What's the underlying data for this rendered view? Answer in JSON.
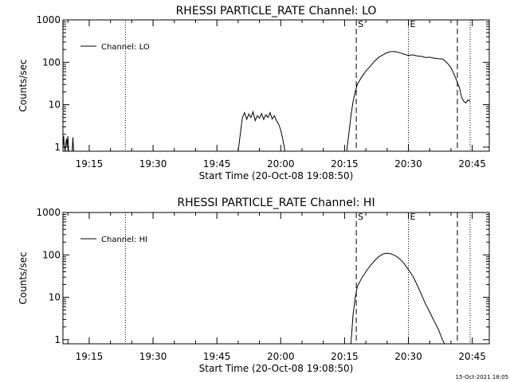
{
  "footer_timestamp": "15-Oct-2021 18:05",
  "chart_data": [
    {
      "type": "line",
      "title": "RHESSI PARTICLE_RATE Channel: LO",
      "xlabel": "Start Time (20-Oct-08 19:08:50)",
      "ylabel": "Counts/sec",
      "yscale": "log",
      "xlim": [
        "19:08:50",
        "20:49:00"
      ],
      "ylim": [
        0.8,
        1000
      ],
      "x_ticks": [
        "19:15",
        "19:30",
        "19:45",
        "20:00",
        "20:15",
        "20:30",
        "20:45"
      ],
      "y_ticks": [
        "1",
        "10",
        "100",
        "1000"
      ],
      "legend": {
        "position": "top-left",
        "entries": [
          "Channel: LO"
        ]
      },
      "markers": [
        {
          "time": "19:23:30",
          "style": "dotted",
          "label": ""
        },
        {
          "time": "20:17:45",
          "style": "dashed",
          "label": "S"
        },
        {
          "time": "20:30:00",
          "style": "dotted",
          "label": "E"
        },
        {
          "time": "20:41:30",
          "style": "dashed",
          "label": ""
        },
        {
          "time": "20:44:30",
          "style": "dotted",
          "label": ""
        }
      ],
      "series": [
        {
          "name": "Channel: LO",
          "segments": [
            {
              "x": [
                "19:08:50",
                "19:09:00",
                "19:09:10",
                "19:09:20",
                "19:09:30",
                "19:09:40",
                "19:09:50",
                "19:10:00",
                "19:10:10",
                "19:11:00",
                "19:11:10",
                "19:11:20"
              ],
              "y": [
                1.0,
                1.8,
                1.0,
                0.8,
                1.2,
                1.6,
                1.0,
                1.8,
                0.8,
                0.8,
                1.7,
                0.8
              ]
            },
            {
              "x": [
                "19:50:00",
                "19:50:30",
                "19:51:00",
                "19:51:30",
                "19:52:00",
                "19:52:30",
                "19:53:00",
                "19:53:30",
                "19:54:00",
                "19:54:30",
                "19:55:00",
                "19:55:30",
                "19:56:00",
                "19:56:30",
                "19:57:00",
                "19:57:30",
                "19:58:00",
                "19:58:30",
                "19:59:00",
                "19:59:30",
                "20:00:00",
                "20:00:30",
                "20:01:00"
              ],
              "y": [
                0.8,
                2.0,
                5.0,
                6.5,
                4.5,
                6.0,
                5.0,
                6.8,
                4.2,
                5.5,
                4.8,
                6.2,
                4.5,
                5.8,
                5.0,
                6.5,
                4.6,
                5.5,
                4.2,
                3.5,
                2.5,
                1.5,
                0.8
              ]
            },
            {
              "x": [
                "20:15:30",
                "20:16:00",
                "20:16:30",
                "20:17:00",
                "20:17:30",
                "20:18:00",
                "20:19:00",
                "20:20:00",
                "20:21:00",
                "20:22:00",
                "20:23:00",
                "20:24:00",
                "20:25:00",
                "20:26:00",
                "20:27:00",
                "20:28:00",
                "20:29:00",
                "20:30:00",
                "20:31:00",
                "20:32:00",
                "20:33:00",
                "20:34:00",
                "20:35:00",
                "20:36:00",
                "20:37:00",
                "20:38:00",
                "20:39:00",
                "20:40:00",
                "20:41:00",
                "20:42:00",
                "20:42:30",
                "20:43:00",
                "20:43:30",
                "20:44:00",
                "20:44:30"
              ],
              "y": [
                0.8,
                2.0,
                5.5,
                12,
                20,
                30,
                45,
                62,
                80,
                105,
                130,
                150,
                170,
                180,
                178,
                168,
                155,
                145,
                150,
                142,
                138,
                130,
                132,
                125,
                122,
                120,
                100,
                75,
                45,
                25,
                15,
                12,
                11,
                13,
                12
              ]
            }
          ]
        }
      ]
    },
    {
      "type": "line",
      "title": "RHESSI PARTICLE_RATE Channel: HI",
      "xlabel": "Start Time (20-Oct-08 19:08:50)",
      "ylabel": "Counts/sec",
      "yscale": "log",
      "xlim": [
        "19:08:50",
        "20:49:00"
      ],
      "ylim": [
        0.8,
        1000
      ],
      "x_ticks": [
        "19:15",
        "19:30",
        "19:45",
        "20:00",
        "20:15",
        "20:30",
        "20:45"
      ],
      "y_ticks": [
        "1",
        "10",
        "100",
        "1000"
      ],
      "legend": {
        "position": "top-left",
        "entries": [
          "Channel: HI"
        ]
      },
      "markers": [
        {
          "time": "19:23:30",
          "style": "dotted",
          "label": ""
        },
        {
          "time": "20:17:45",
          "style": "dashed",
          "label": "S"
        },
        {
          "time": "20:30:00",
          "style": "dotted",
          "label": "E"
        },
        {
          "time": "20:41:30",
          "style": "dashed",
          "label": ""
        },
        {
          "time": "20:44:30",
          "style": "dotted",
          "label": ""
        }
      ],
      "series": [
        {
          "name": "Channel: HI",
          "segments": [
            {
              "x": [
                "20:16:30",
                "20:17:00",
                "20:17:30",
                "20:18:00",
                "20:19:00",
                "20:20:00",
                "20:21:00",
                "20:22:00",
                "20:23:00",
                "20:24:00",
                "20:25:00",
                "20:26:00",
                "20:27:00",
                "20:28:00",
                "20:29:00",
                "20:30:00",
                "20:31:00",
                "20:32:00",
                "20:33:00",
                "20:34:00",
                "20:35:00",
                "20:36:00",
                "20:37:00",
                "20:38:00",
                "20:38:30"
              ],
              "y": [
                0.8,
                4,
                10,
                18,
                28,
                40,
                55,
                72,
                90,
                105,
                110,
                105,
                95,
                80,
                62,
                45,
                32,
                20,
                12,
                7,
                4.5,
                2.8,
                1.8,
                1.0,
                0.8
              ]
            }
          ]
        }
      ]
    }
  ]
}
